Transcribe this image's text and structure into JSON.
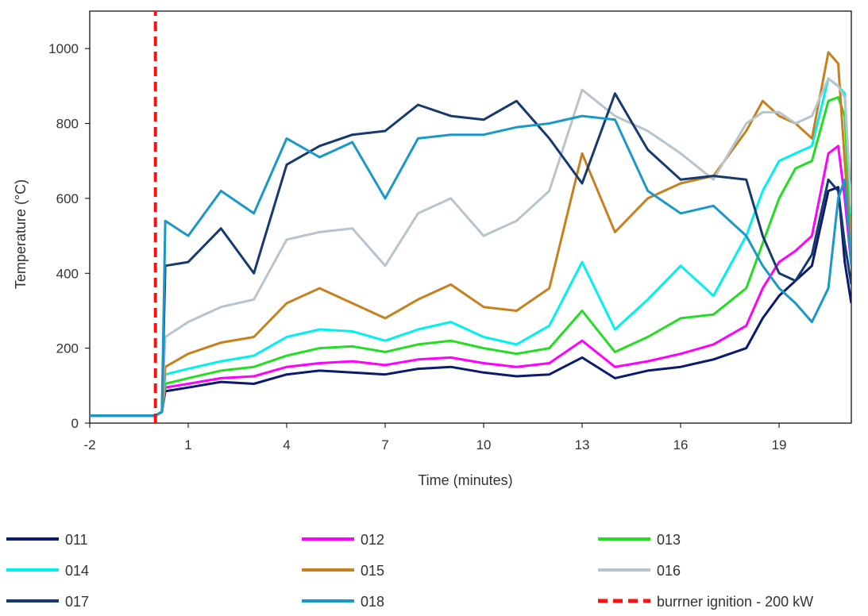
{
  "chart_data": {
    "type": "line",
    "title": "",
    "xlabel": "Time (minutes)",
    "ylabel": "Temperature (°C)",
    "xlim": [
      -2,
      21.2
    ],
    "ylim": [
      0,
      1100
    ],
    "xticks": [
      -2,
      1,
      4,
      7,
      10,
      13,
      16,
      19
    ],
    "yticks": [
      0,
      200,
      400,
      600,
      800,
      1000
    ],
    "grid": false,
    "legend_position": "bottom",
    "series": [
      {
        "name": "011",
        "color": "#0a1a6e",
        "dash": false,
        "x": [
          -2,
          0,
          0.2,
          0.3,
          1,
          2,
          3,
          4,
          5,
          6,
          7,
          8,
          9,
          10,
          11,
          12,
          13,
          14,
          15,
          16,
          17,
          18,
          18.5,
          19,
          19.5,
          20,
          20.5,
          20.8,
          21.0,
          21.2
        ],
        "y": [
          20,
          20,
          30,
          85,
          95,
          110,
          105,
          130,
          140,
          135,
          130,
          145,
          150,
          135,
          125,
          130,
          175,
          120,
          140,
          150,
          170,
          200,
          280,
          340,
          380,
          420,
          620,
          630,
          430,
          320
        ]
      },
      {
        "name": "012",
        "color": "#ff00ff",
        "dash": false,
        "x": [
          -2,
          0,
          0.2,
          0.3,
          1,
          2,
          3,
          4,
          5,
          6,
          7,
          8,
          9,
          10,
          11,
          12,
          13,
          14,
          15,
          16,
          17,
          18,
          18.5,
          19,
          19.5,
          20,
          20.5,
          20.8,
          21.0,
          21.2
        ],
        "y": [
          20,
          20,
          30,
          95,
          105,
          120,
          125,
          150,
          160,
          165,
          155,
          170,
          175,
          160,
          150,
          160,
          220,
          150,
          165,
          185,
          210,
          260,
          360,
          430,
          460,
          500,
          720,
          740,
          600,
          420
        ]
      },
      {
        "name": "013",
        "color": "#22dd22",
        "dash": false,
        "x": [
          -2,
          0,
          0.2,
          0.3,
          1,
          2,
          3,
          4,
          5,
          6,
          7,
          8,
          9,
          10,
          11,
          12,
          13,
          14,
          15,
          16,
          17,
          18,
          18.5,
          19,
          19.5,
          20,
          20.5,
          20.8,
          21.0,
          21.2
        ],
        "y": [
          20,
          20,
          30,
          105,
          120,
          140,
          150,
          180,
          200,
          205,
          190,
          210,
          220,
          200,
          185,
          200,
          300,
          190,
          230,
          280,
          290,
          360,
          480,
          600,
          680,
          700,
          860,
          870,
          820,
          500
        ]
      },
      {
        "name": "014",
        "color": "#00f0f0",
        "dash": false,
        "x": [
          -2,
          0,
          0.2,
          0.3,
          1,
          2,
          3,
          4,
          5,
          6,
          7,
          8,
          9,
          10,
          11,
          12,
          13,
          14,
          15,
          16,
          17,
          18,
          18.5,
          19,
          19.5,
          20,
          20.5,
          20.8,
          21.0,
          21.2
        ],
        "y": [
          20,
          20,
          30,
          130,
          145,
          165,
          180,
          230,
          250,
          245,
          220,
          250,
          270,
          230,
          210,
          260,
          430,
          250,
          330,
          420,
          340,
          500,
          620,
          700,
          720,
          740,
          920,
          900,
          880,
          560
        ]
      },
      {
        "name": "015",
        "color": "#c8801e",
        "dash": false,
        "x": [
          -2,
          0,
          0.2,
          0.3,
          1,
          2,
          3,
          4,
          5,
          6,
          7,
          8,
          9,
          10,
          11,
          12,
          13,
          14,
          15,
          16,
          17,
          18,
          18.5,
          19,
          19.5,
          20,
          20.5,
          20.8,
          21.0,
          21.2
        ],
        "y": [
          20,
          20,
          30,
          150,
          185,
          215,
          230,
          320,
          360,
          320,
          280,
          330,
          370,
          310,
          300,
          360,
          720,
          510,
          600,
          640,
          660,
          780,
          860,
          820,
          800,
          760,
          990,
          960,
          700,
          460
        ]
      },
      {
        "name": "016",
        "color": "#b8c4cc",
        "dash": false,
        "x": [
          -2,
          0,
          0.2,
          0.3,
          1,
          2,
          3,
          4,
          5,
          6,
          7,
          8,
          9,
          10,
          11,
          12,
          13,
          14,
          15,
          16,
          17,
          18,
          18.5,
          19,
          19.5,
          20,
          20.5,
          20.8,
          21.0,
          21.2
        ],
        "y": [
          20,
          20,
          30,
          230,
          270,
          310,
          330,
          490,
          510,
          520,
          420,
          560,
          600,
          500,
          540,
          620,
          890,
          820,
          780,
          720,
          650,
          800,
          830,
          830,
          800,
          820,
          920,
          900,
          870,
          580
        ]
      },
      {
        "name": "017",
        "color": "#163a70",
        "dash": false,
        "x": [
          -2,
          0,
          0.2,
          0.3,
          1,
          2,
          3,
          4,
          5,
          6,
          7,
          8,
          9,
          10,
          11,
          12,
          13,
          14,
          15,
          16,
          17,
          18,
          18.5,
          19,
          19.5,
          20,
          20.5,
          20.8,
          21.0,
          21.2
        ],
        "y": [
          20,
          20,
          30,
          420,
          430,
          520,
          400,
          690,
          740,
          770,
          780,
          850,
          820,
          810,
          860,
          760,
          640,
          880,
          730,
          650,
          660,
          650,
          500,
          400,
          380,
          450,
          650,
          620,
          480,
          370
        ]
      },
      {
        "name": "018",
        "color": "#1a98c8",
        "dash": false,
        "x": [
          -2,
          0,
          0.2,
          0.3,
          1,
          2,
          3,
          4,
          5,
          6,
          7,
          8,
          9,
          10,
          11,
          12,
          13,
          14,
          15,
          16,
          17,
          18,
          18.5,
          19,
          19.5,
          20,
          20.5,
          20.8,
          21.0,
          21.2
        ],
        "y": [
          20,
          20,
          30,
          540,
          500,
          620,
          560,
          760,
          710,
          750,
          600,
          760,
          770,
          770,
          790,
          800,
          820,
          810,
          620,
          560,
          580,
          500,
          420,
          360,
          320,
          270,
          360,
          600,
          650,
          420
        ]
      },
      {
        "name": "burrner ignition - 200 kW",
        "color": "#ff1010",
        "dash": true,
        "x": [
          0,
          0
        ],
        "y": [
          0,
          1100
        ]
      }
    ]
  }
}
